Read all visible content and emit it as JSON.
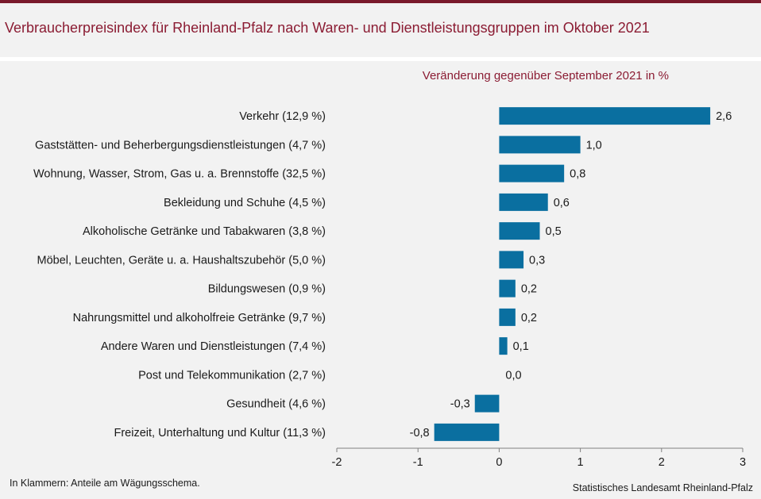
{
  "chart_data": {
    "type": "bar",
    "orientation": "horizontal",
    "title": "Verbraucherpreisindex für Rheinland-Pfalz nach Waren- und Dienstleistungsgruppen im Oktober 2021",
    "subtitle": "Veränderung gegenüber September 2021 in %",
    "categories": [
      "Verkehr (12,9 %)",
      "Gaststätten- und Beherbergungsdienstleistungen (4,7 %)",
      "Wohnung, Wasser, Strom, Gas u. a. Brennstoffe (32,5 %)",
      "Bekleidung und Schuhe (4,5 %)",
      "Alkoholische Getränke und Tabakwaren (3,8 %)",
      "Möbel, Leuchten, Geräte u. a. Haushaltszubehör (5,0 %)",
      "Bildungswesen (0,9 %)",
      "Nahrungsmittel und alkoholfreie Getränke (9,7 %)",
      "Andere Waren und Dienstleistungen (7,4 %)",
      "Post und Telekommunikation (2,7 %)",
      "Gesundheit (4,6 %)",
      "Freizeit, Unterhaltung und Kultur (11,3 %)"
    ],
    "values": [
      2.6,
      1.0,
      0.8,
      0.6,
      0.5,
      0.3,
      0.2,
      0.2,
      0.1,
      0.0,
      -0.3,
      -0.8
    ],
    "value_labels": [
      "2,6",
      "1,0",
      "0,8",
      "0,6",
      "0,5",
      "0,3",
      "0,2",
      "0,2",
      "0,1",
      "0,0",
      "-0,3",
      "-0,8"
    ],
    "xlim": [
      -2,
      3
    ],
    "xticks": [
      -2,
      -1,
      0,
      1,
      2,
      3
    ],
    "xtick_labels": [
      "-2",
      "-1",
      "0",
      "1",
      "2",
      "3"
    ],
    "bar_color": "#0a6fa0",
    "grid": false
  },
  "footnote": "In Klammern: Anteile am Wägungsschema.",
  "source": "Statistisches Landesamt Rheinland-Pfalz"
}
